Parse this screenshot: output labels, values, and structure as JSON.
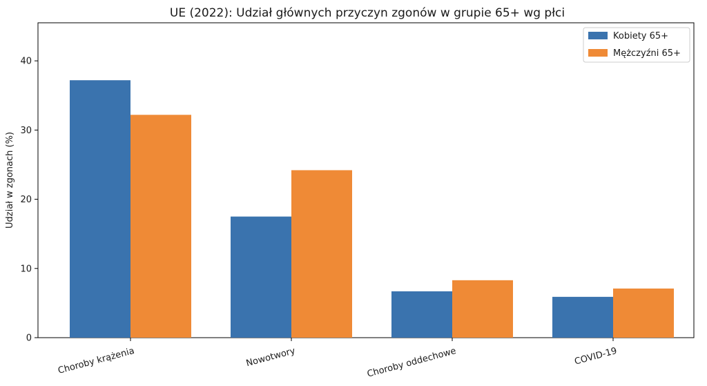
{
  "chart_data": {
    "type": "bar",
    "title": "UE (2022): Udział głównych przyczyn zgonów w grupie 65+ wg płci",
    "xlabel": "",
    "ylabel": "Udział w zgonach (%)",
    "categories": [
      "Choroby krążenia",
      "Nowotwory",
      "Choroby oddechowe",
      "COVID-19"
    ],
    "series": [
      {
        "name": "Kobiety 65+",
        "color": "#3a73ae",
        "values": [
          37.2,
          17.5,
          6.7,
          5.9
        ]
      },
      {
        "name": "Mężczyźni 65+",
        "color": "#ef8a36",
        "values": [
          32.2,
          24.2,
          8.3,
          7.1
        ]
      }
    ],
    "ylim": [
      0,
      45.5
    ],
    "yticks": [
      "0",
      "10",
      "20",
      "30",
      "40"
    ],
    "grid": false,
    "legend": "top-right"
  }
}
